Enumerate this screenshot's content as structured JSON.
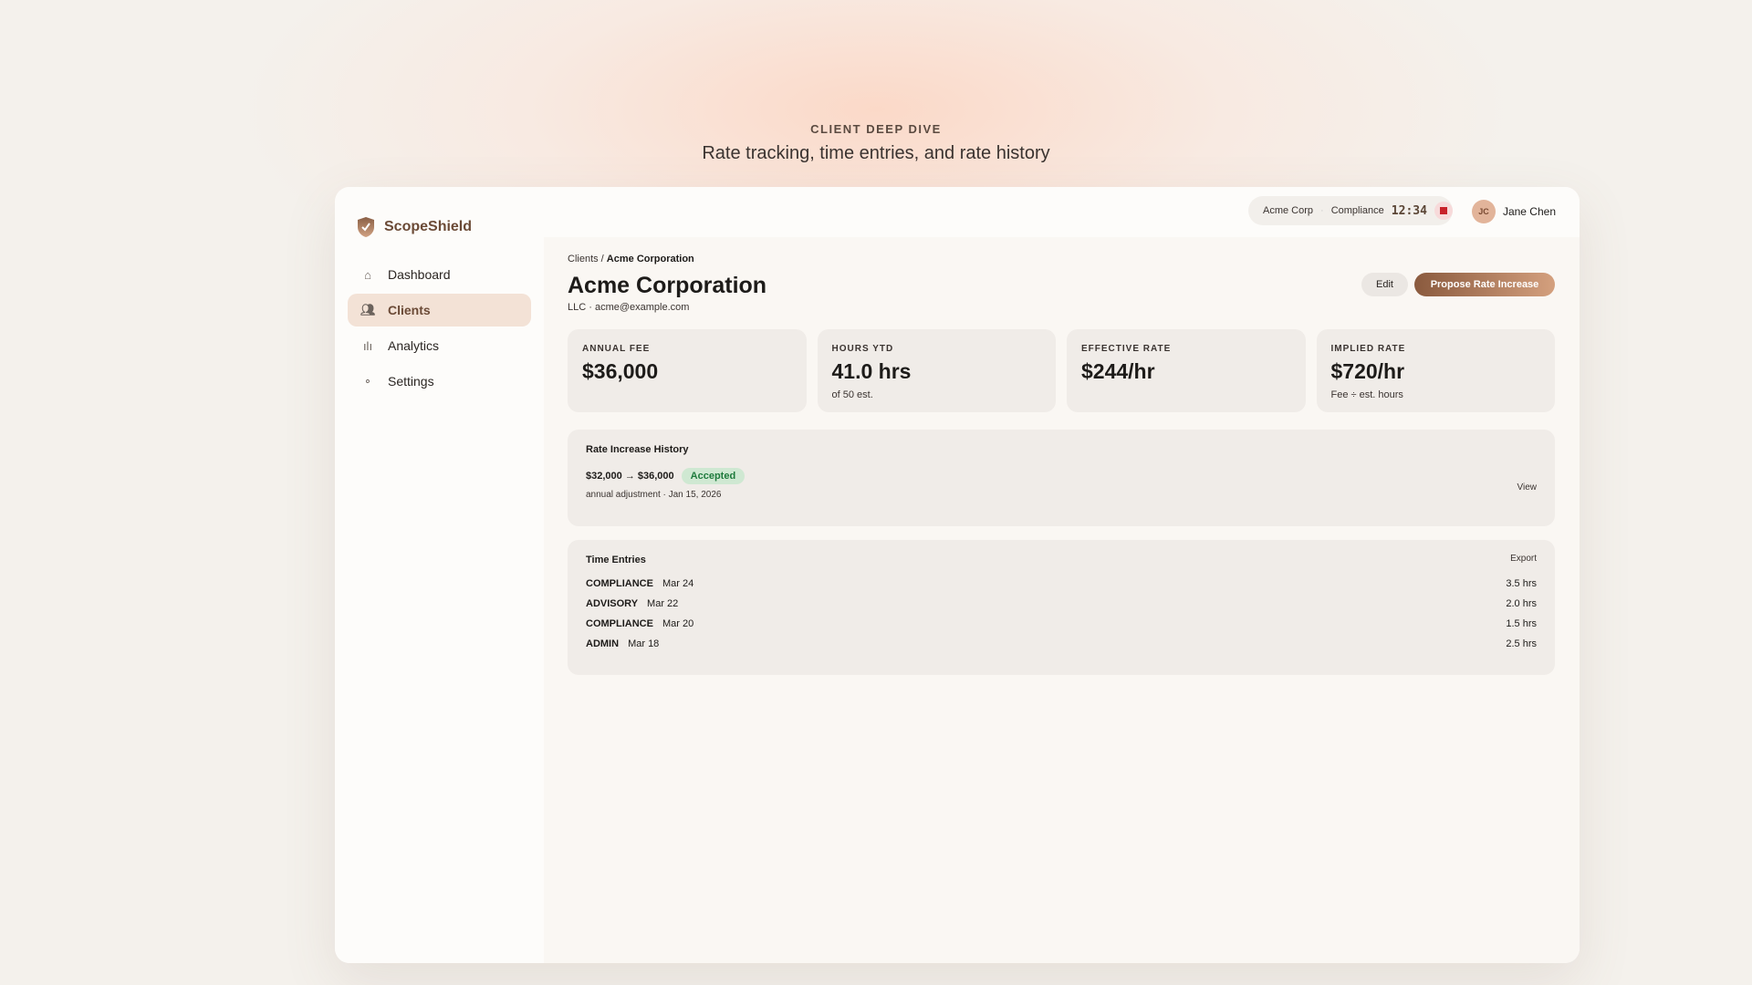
{
  "hero": {
    "eyebrow": "CLIENT DEEP DIVE",
    "subtitle": "Rate tracking, time entries, and rate history"
  },
  "app": {
    "name": "ScopeShield"
  },
  "sidebar": {
    "items": [
      {
        "label": "Dashboard",
        "icon": "home-icon"
      },
      {
        "label": "Clients",
        "icon": "users-icon",
        "active": true
      },
      {
        "label": "Analytics",
        "icon": "bar-chart-icon"
      },
      {
        "label": "Settings",
        "icon": "gear-icon"
      }
    ]
  },
  "timer": {
    "client": "Acme Corp",
    "category": "Compliance",
    "time": "12:34"
  },
  "user": {
    "initials": "JC",
    "name": "Jane Chen"
  },
  "breadcrumb": {
    "parent": "Clients",
    "current": "Acme Corporation"
  },
  "client": {
    "name": "Acme Corporation",
    "meta": "LLC · acme@example.com"
  },
  "actions": {
    "edit": "Edit",
    "propose": "Propose Rate Increase"
  },
  "stats": [
    {
      "label": "ANNUAL FEE",
      "value": "$36,000",
      "note": ""
    },
    {
      "label": "HOURS YTD",
      "value": "41.0 hrs",
      "note": "of 50 est."
    },
    {
      "label": "EFFECTIVE RATE",
      "value": "$244/hr",
      "note": ""
    },
    {
      "label": "IMPLIED RATE",
      "value": "$720/hr",
      "note": "Fee ÷ est. hours"
    }
  ],
  "rate_history": {
    "title": "Rate Increase History",
    "change": "$32,000 → $36,000",
    "status": "Accepted",
    "detail": "annual adjustment · Jan 15, 2026",
    "view": "View"
  },
  "time_entries": {
    "title": "Time Entries",
    "export": "Export",
    "rows": [
      {
        "category": "COMPLIANCE",
        "date": "Mar 24",
        "hours": "3.5 hrs"
      },
      {
        "category": "ADVISORY",
        "date": "Mar 22",
        "hours": "2.0 hrs"
      },
      {
        "category": "COMPLIANCE",
        "date": "Mar 20",
        "hours": "1.5 hrs"
      },
      {
        "category": "ADMIN",
        "date": "Mar 18",
        "hours": "2.5 hrs"
      }
    ]
  }
}
